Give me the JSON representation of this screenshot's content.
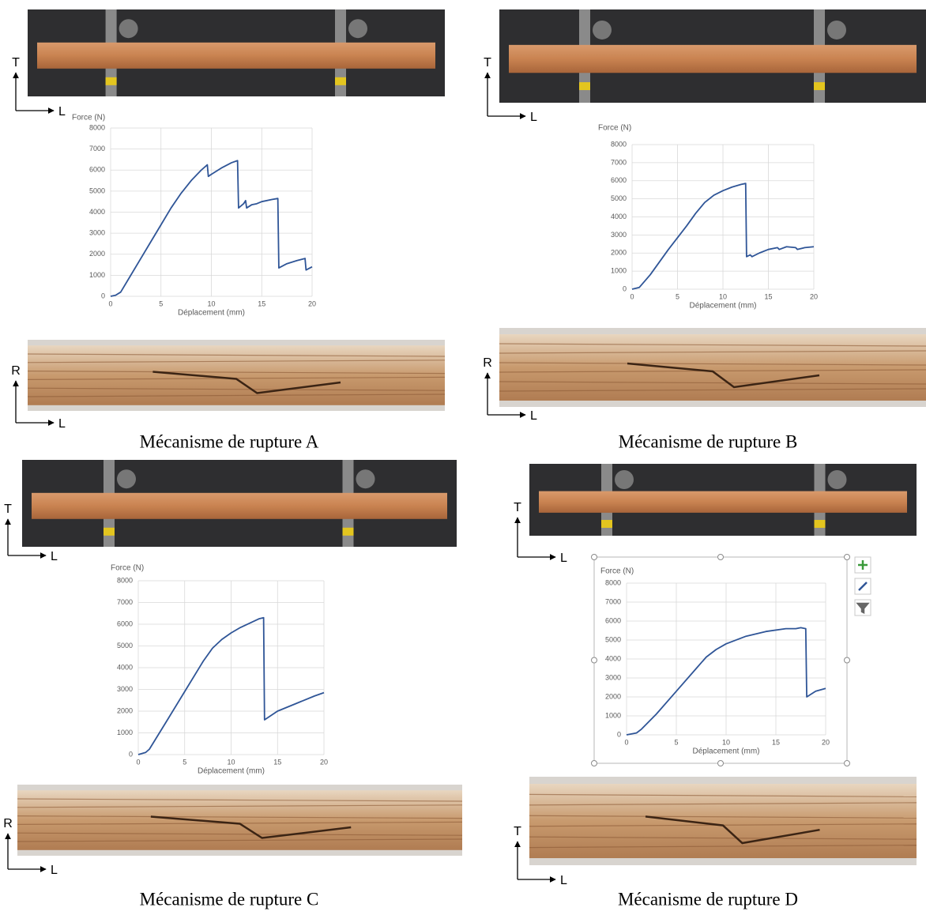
{
  "chart_data": [
    {
      "type": "line",
      "title": "Force (N)",
      "x_label": "Déplacement (mm)",
      "color": "#2f5597",
      "grid": true,
      "x": [
        0,
        0.5,
        1,
        2,
        3,
        4,
        5,
        6,
        7,
        8,
        9,
        9.6,
        9.7,
        10,
        11,
        12,
        12.6,
        12.7,
        13.2,
        13.4,
        13.5,
        14,
        14.5,
        15,
        16,
        16.6,
        16.7,
        17.5,
        18.5,
        19.3,
        19.4,
        20
      ],
      "values": [
        0,
        50,
        200,
        1000,
        1800,
        2600,
        3400,
        4200,
        4900,
        5500,
        6000,
        6250,
        5700,
        5800,
        6100,
        6350,
        6450,
        4200,
        4400,
        4550,
        4200,
        4350,
        4400,
        4500,
        4600,
        4650,
        1350,
        1550,
        1700,
        1800,
        1250,
        1400
      ],
      "xlim": [
        0,
        20
      ],
      "xticks": [
        0,
        5,
        10,
        15,
        20
      ],
      "ylim": [
        0,
        8000
      ],
      "yticks": [
        0,
        1000,
        2000,
        3000,
        4000,
        5000,
        6000,
        7000,
        8000
      ]
    },
    {
      "type": "line",
      "title": "Force (N)",
      "x_label": "Déplacement (mm)",
      "color": "#2f5597",
      "grid": true,
      "x": [
        0,
        0.8,
        2,
        4,
        6,
        7,
        8,
        9,
        10,
        11,
        12,
        12.5,
        12.6,
        13,
        13.2,
        14,
        15,
        16,
        16.2,
        17,
        18,
        18.2,
        19,
        20
      ],
      "values": [
        0,
        100,
        800,
        2200,
        3500,
        4200,
        4800,
        5200,
        5450,
        5650,
        5800,
        5850,
        1800,
        1900,
        1800,
        2000,
        2200,
        2300,
        2200,
        2350,
        2300,
        2200,
        2300,
        2350
      ],
      "xlim": [
        0,
        20
      ],
      "xticks": [
        0,
        5,
        10,
        15,
        20
      ],
      "ylim": [
        0,
        8000
      ],
      "yticks": [
        0,
        1000,
        2000,
        3000,
        4000,
        5000,
        6000,
        7000,
        8000
      ]
    },
    {
      "type": "line",
      "title": "Force (N)",
      "x_label": "Déplacement (mm)",
      "color": "#2f5597",
      "grid": true,
      "x": [
        0,
        0.8,
        1.2,
        3,
        5,
        7,
        8,
        9,
        10,
        11,
        12,
        13,
        13.5,
        13.6,
        15,
        17,
        19,
        20
      ],
      "values": [
        0,
        100,
        250,
        1500,
        2900,
        4300,
        4900,
        5300,
        5600,
        5850,
        6050,
        6250,
        6300,
        1600,
        2000,
        2350,
        2700,
        2850
      ],
      "xlim": [
        0,
        20
      ],
      "xticks": [
        0,
        5,
        10,
        15,
        20
      ],
      "ylim": [
        0,
        8000
      ],
      "yticks": [
        0,
        1000,
        2000,
        3000,
        4000,
        5000,
        6000,
        7000,
        8000
      ]
    },
    {
      "type": "line",
      "title": "Force (N)",
      "x_label": "Déplacement (mm)",
      "color": "#2f5597",
      "grid": true,
      "x": [
        0,
        1,
        1.5,
        3,
        5,
        7,
        8,
        9,
        10,
        12,
        14,
        16,
        17,
        17.5,
        18,
        18.1,
        19,
        20
      ],
      "values": [
        0,
        100,
        300,
        1100,
        2300,
        3500,
        4100,
        4500,
        4800,
        5200,
        5450,
        5600,
        5600,
        5650,
        5600,
        2000,
        2300,
        2450
      ],
      "xlim": [
        0,
        20
      ],
      "xticks": [
        0,
        5,
        10,
        15,
        20
      ],
      "ylim": [
        0,
        8000
      ],
      "yticks": [
        0,
        1000,
        2000,
        3000,
        4000,
        5000,
        6000,
        7000,
        8000
      ]
    }
  ],
  "panels": [
    {
      "caption": "Mécanisme de rupture A",
      "top_axes": {
        "vertical": "T",
        "horizontal": "L"
      },
      "bottom_axes": {
        "vertical": "R",
        "horizontal": "L"
      }
    },
    {
      "caption": "Mécanisme de rupture B",
      "top_axes": {
        "vertical": "T",
        "horizontal": "L"
      },
      "bottom_axes": {
        "vertical": "R",
        "horizontal": "L"
      }
    },
    {
      "caption": "Mécanisme de rupture C",
      "top_axes": {
        "vertical": "T",
        "horizontal": "L"
      },
      "bottom_axes": {
        "vertical": "R",
        "horizontal": "L"
      }
    },
    {
      "caption": "Mécanisme de rupture D",
      "top_axes": {
        "vertical": "T",
        "horizontal": "L"
      },
      "bottom_axes": {
        "vertical": "T",
        "horizontal": "L"
      }
    }
  ]
}
